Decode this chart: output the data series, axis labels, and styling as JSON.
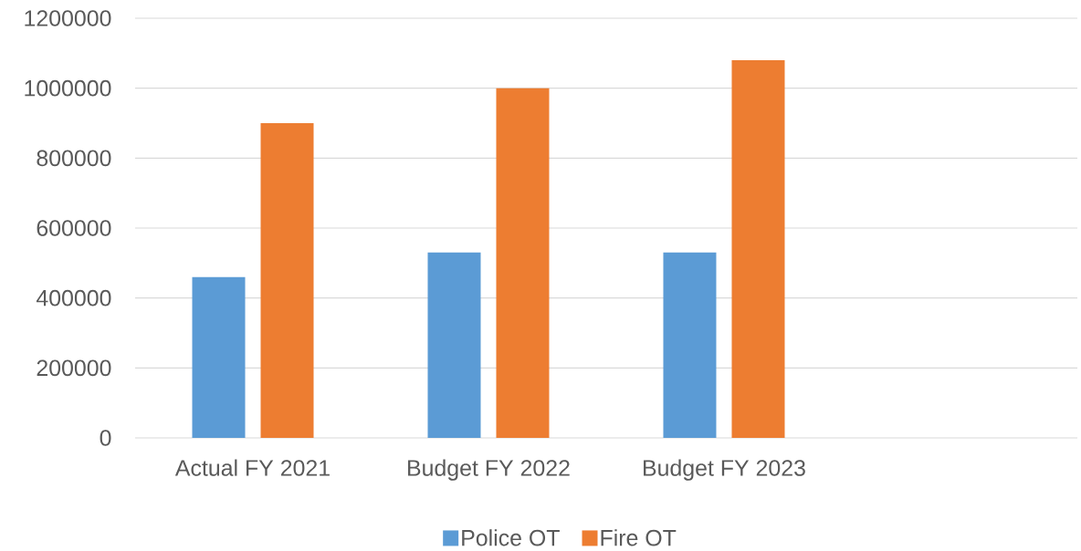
{
  "chart_data": {
    "type": "bar",
    "categories": [
      "Actual FY 2021",
      "Budget FY 2022",
      "Budget FY 2023",
      null
    ],
    "series": [
      {
        "name": "Police OT",
        "color": "#5b9bd5",
        "values": [
          460000,
          530000,
          530000,
          null
        ]
      },
      {
        "name": "Fire OT",
        "color": "#ed7d31",
        "values": [
          900000,
          1000000,
          1080000,
          null
        ]
      }
    ],
    "ylim": [
      0,
      1200000
    ],
    "yticks": [
      0,
      200000,
      400000,
      600000,
      800000,
      1000000,
      1200000
    ],
    "grid": "y",
    "legend": "bottom"
  }
}
